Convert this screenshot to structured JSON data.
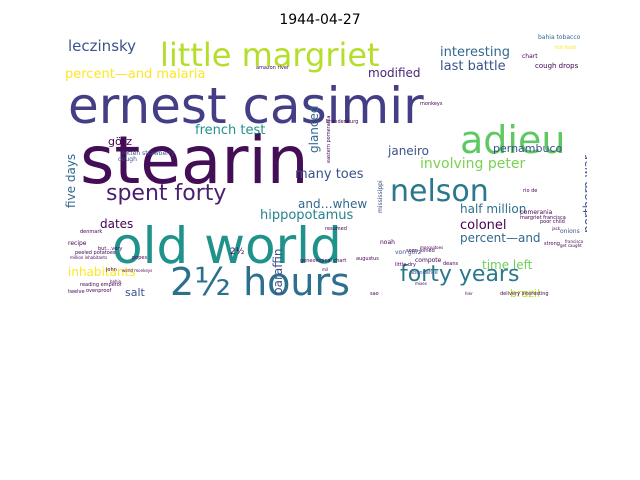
{
  "title": "1944-04-27",
  "colors": {
    "background": "#ffffff",
    "palette": "viridis"
  },
  "words": [
    {
      "text": "stearin",
      "color": "#440e57",
      "vertical": false
    },
    {
      "text": "ernest casimir",
      "color": "#433e85",
      "vertical": false
    },
    {
      "text": "old world",
      "color": "#20928c",
      "vertical": false
    },
    {
      "text": "2½ hours",
      "color": "#2d708e",
      "vertical": false
    },
    {
      "text": "adieu",
      "color": "#5ec962",
      "vertical": false
    },
    {
      "text": "little margriet",
      "color": "#b5de2b",
      "vertical": false
    },
    {
      "text": "nelson",
      "color": "#2a788e",
      "vertical": false
    },
    {
      "text": "forty years",
      "color": "#2a788e",
      "vertical": false
    },
    {
      "text": "spent forty",
      "color": "#481f70",
      "vertical": false
    },
    {
      "text": "involving peter",
      "color": "#7ad151",
      "vertical": false
    },
    {
      "text": "leczinsky",
      "color": "#3b528b",
      "vertical": false
    },
    {
      "text": "interesting",
      "color": "#31688e",
      "vertical": false
    },
    {
      "text": "last battle",
      "color": "#3b528b",
      "vertical": false
    },
    {
      "text": "percent—and malaria",
      "color": "#fde725",
      "vertical": false
    },
    {
      "text": "modified",
      "color": "#482878",
      "vertical": false
    },
    {
      "text": "glanced",
      "color": "#31688e",
      "vertical": true
    },
    {
      "text": "french test",
      "color": "#21918c",
      "vertical": false
    },
    {
      "text": "five days",
      "color": "#31688e",
      "vertical": true
    },
    {
      "text": "janeiro",
      "color": "#3b528b",
      "vertical": false
    },
    {
      "text": "pernambuco",
      "color": "#3b528b",
      "vertical": false
    },
    {
      "text": "görz",
      "color": "#440154",
      "vertical": false
    },
    {
      "text": "many toes",
      "color": "#3b528b",
      "vertical": false
    },
    {
      "text": "hippopotamus",
      "color": "#26828e",
      "vertical": false
    },
    {
      "text": "dates",
      "color": "#440154",
      "vertical": false
    },
    {
      "text": "and…whew",
      "color": "#31688e",
      "vertical": false
    },
    {
      "text": "half million",
      "color": "#2c728e",
      "vertical": false
    },
    {
      "text": "colonel",
      "color": "#440154",
      "vertical": false
    },
    {
      "text": "percent—and",
      "color": "#31688e",
      "vertical": false
    },
    {
      "text": "time left",
      "color": "#6ece58",
      "vertical": false
    },
    {
      "text": "paraffin",
      "color": "#3b528b",
      "vertical": true
    },
    {
      "text": "inhabitants",
      "color": "#fde725",
      "vertical": false
    },
    {
      "text": "salt",
      "color": "#3b528b",
      "vertical": false
    },
    {
      "text": "brazil",
      "color": "#bddf26",
      "vertical": false
    },
    {
      "text": "northern war",
      "color": "#3b528b",
      "vertical": true
    },
    {
      "text": "mississippi",
      "color": "#3b528b",
      "vertical": true
    },
    {
      "text": "bahia tobacco",
      "color": "#31688e",
      "vertical": false
    },
    {
      "text": "cough drops",
      "color": "#440154",
      "vertical": false
    },
    {
      "text": "rotten strawberry",
      "color": "#3b528b",
      "vertical": false
    },
    {
      "text": "dough",
      "color": "#3b528b",
      "vertical": false
    },
    {
      "text": "chart",
      "color": "#440154",
      "vertical": false
    },
    {
      "text": "onions",
      "color": "#3b528b",
      "vertical": false
    },
    {
      "text": "noah",
      "color": "#440154",
      "vertical": false
    },
    {
      "text": "compote",
      "color": "#440154",
      "vertical": false
    },
    {
      "text": "pomerania",
      "color": "#440154",
      "vertical": false
    },
    {
      "text": "von görz",
      "color": "#3b528b",
      "vertical": false
    },
    {
      "text": "abundance",
      "color": "#3b528b",
      "vertical": false
    },
    {
      "text": "popes",
      "color": "#440154",
      "vertical": false
    },
    {
      "text": "recipe",
      "color": "#440154",
      "vertical": false
    },
    {
      "text": "denmark",
      "color": "#440154",
      "vertical": false
    },
    {
      "text": "reading emperor",
      "color": "#440154",
      "vertical": false
    },
    {
      "text": "ovenproof",
      "color": "#440154",
      "vertical": false
    },
    {
      "text": "twelve",
      "color": "#440154",
      "vertical": false
    },
    {
      "text": "soon joined",
      "color": "#440154",
      "vertical": false
    },
    {
      "text": "resumed",
      "color": "#440154",
      "vertical": false
    },
    {
      "text": "sao",
      "color": "#440154",
      "vertical": false
    },
    {
      "text": "augustus",
      "color": "#440154",
      "vertical": false
    },
    {
      "text": "margriet francisca",
      "color": "#440154",
      "vertical": false
    },
    {
      "text": "poor child",
      "color": "#440154",
      "vertical": false
    },
    {
      "text": "little dry",
      "color": "#440154",
      "vertical": false
    },
    {
      "text": "amazon river",
      "color": "#440154",
      "vertical": false
    },
    {
      "text": "brandenburg",
      "color": "#440154",
      "vertical": false
    },
    {
      "text": "john",
      "color": "#440154",
      "vertical": false
    },
    {
      "text": "but…very",
      "color": "#440154",
      "vertical": false
    },
    {
      "text": "2½",
      "color": "#440154",
      "vertical": false
    },
    {
      "text": "geneological chart",
      "color": "#440154",
      "vertical": false
    },
    {
      "text": "monkeys",
      "color": "#440154",
      "vertical": false
    },
    {
      "text": "deans",
      "color": "#440154",
      "vertical": false
    },
    {
      "text": "rio de",
      "color": "#440154",
      "vertical": false
    },
    {
      "text": "eastern pomerania",
      "color": "#440154",
      "vertical": true
    },
    {
      "text": "strong",
      "color": "#440154",
      "vertical": false
    },
    {
      "text": "jack",
      "color": "#440154",
      "vertical": false
    },
    {
      "text": "get caught",
      "color": "#440154",
      "vertical": false
    },
    {
      "text": "bahia",
      "color": "#440154",
      "vertical": false
    },
    {
      "text": "peeled potatoes",
      "color": "#440154",
      "vertical": false
    },
    {
      "text": "delivery interesting",
      "color": "#440154",
      "vertical": false
    },
    {
      "text": "million inhabitants",
      "color": "#440154",
      "vertical": false
    },
    {
      "text": "world monkeys",
      "color": "#440154",
      "vertical": false
    },
    {
      "text": "mil",
      "color": "#440154",
      "vertical": false
    },
    {
      "text": "hot food",
      "color": "#fde725",
      "vertical": false
    },
    {
      "text": "francisca",
      "color": "#440154",
      "vertical": false
    },
    {
      "text": "hier",
      "color": "#440154",
      "vertical": false
    },
    {
      "text": "mosquitoes",
      "color": "#440154",
      "vertical": false
    },
    {
      "text": "mixes",
      "color": "#440154",
      "vertical": false
    }
  ]
}
